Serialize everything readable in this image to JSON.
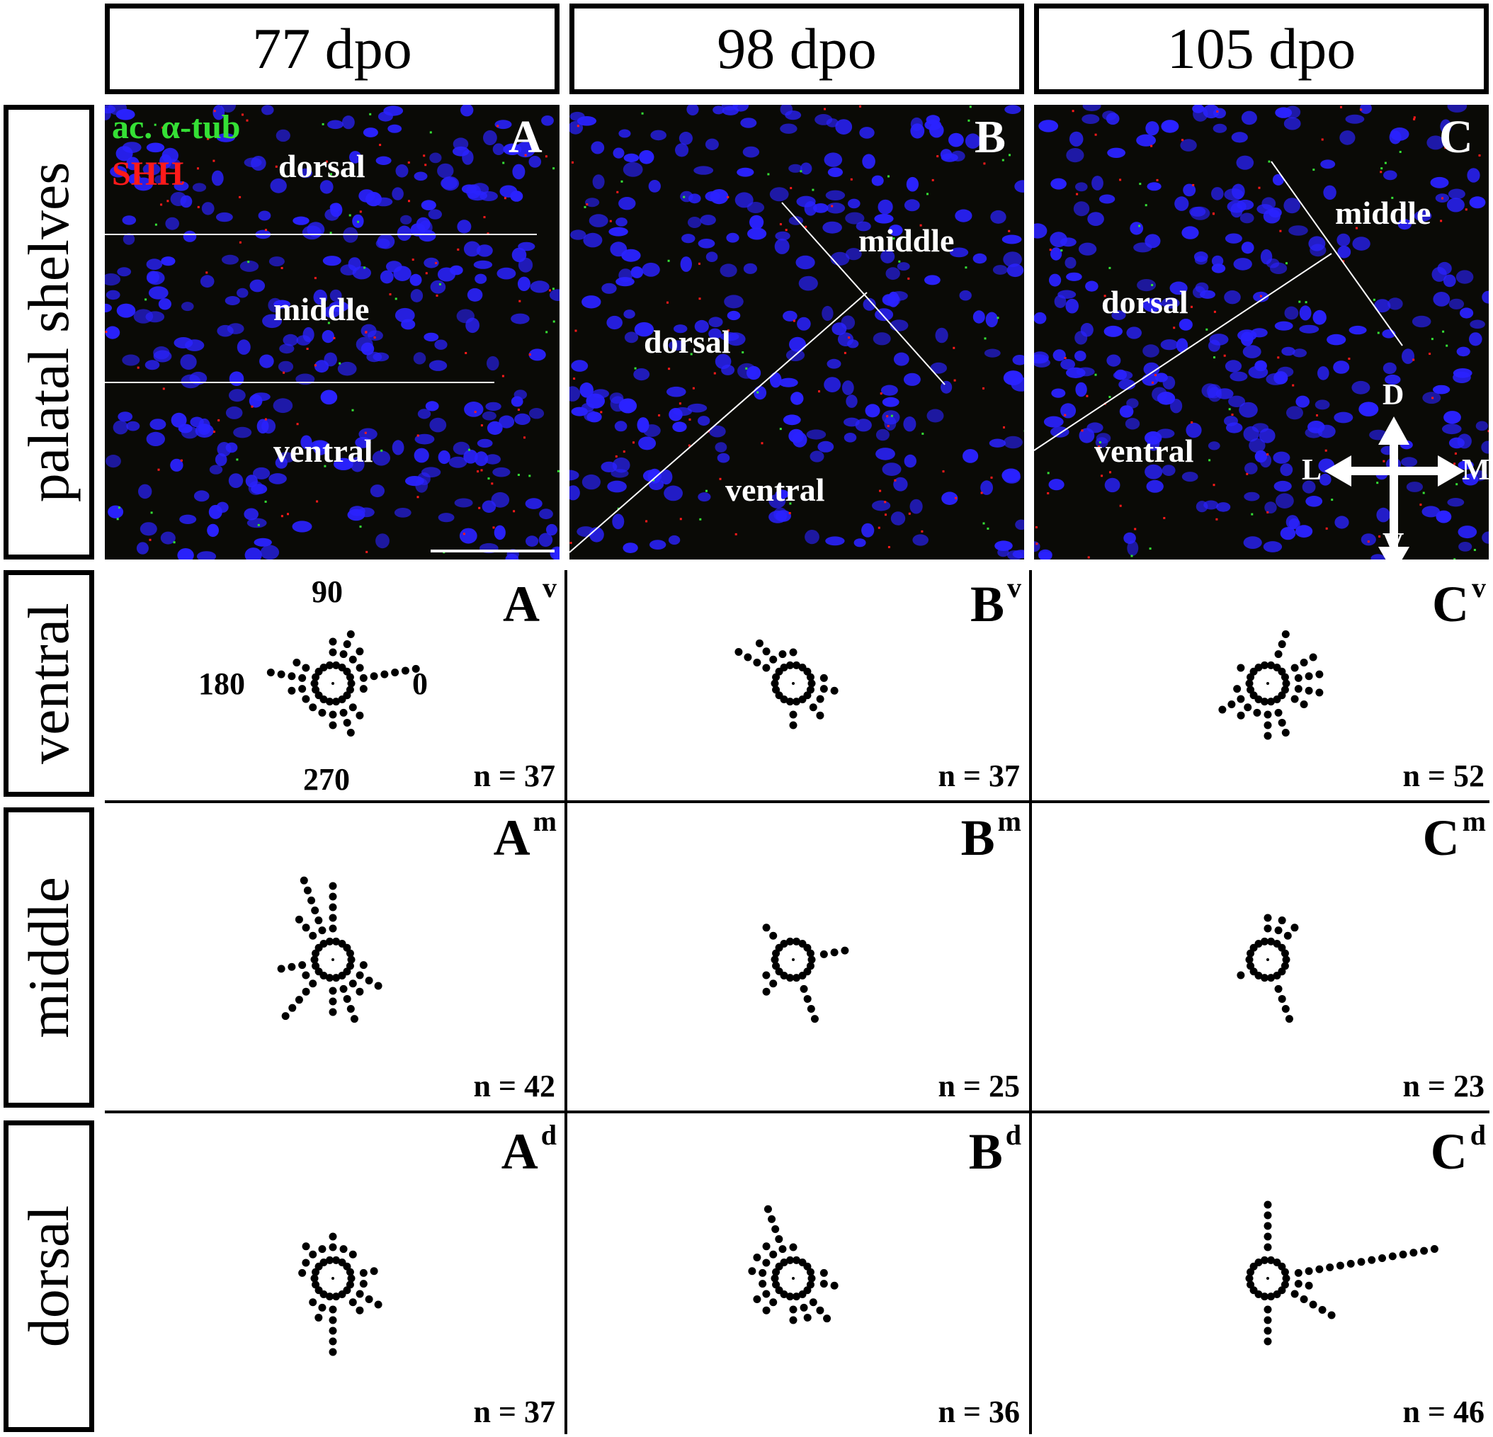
{
  "columns": [
    "77 dpo",
    "98 dpo",
    "105 dpo"
  ],
  "rows": [
    "palatal shelves",
    "ventral",
    "middle",
    "dorsal"
  ],
  "stain_labels": {
    "tubulin": "ac. α-tub",
    "shh": "SHH"
  },
  "colors": {
    "tubulin": "#35e035",
    "shh": "#ff1a1a",
    "nuclei": "#2a22ff",
    "background": "#0a0a06"
  },
  "micrographs": [
    {
      "label": "A",
      "regions": [
        "dorsal",
        "middle",
        "ventral"
      ]
    },
    {
      "label": "B",
      "regions": [
        "middle",
        "dorsal",
        "ventral"
      ]
    },
    {
      "label": "C",
      "regions": [
        "middle",
        "dorsal",
        "ventral"
      ]
    }
  ],
  "axis_letters": {
    "D": "D",
    "V": "V",
    "L": "L",
    "M": "M"
  },
  "angle_labels": {
    "a90": "90",
    "a180": "180",
    "a0": "0",
    "a270": "270"
  },
  "rose_panels": [
    [
      {
        "letter": "A",
        "sup": "v",
        "n": "n = 37"
      },
      {
        "letter": "B",
        "sup": "v",
        "n": "n = 37"
      },
      {
        "letter": "C",
        "sup": "v",
        "n": "n = 52"
      }
    ],
    [
      {
        "letter": "A",
        "sup": "m",
        "n": "n = 42"
      },
      {
        "letter": "B",
        "sup": "m",
        "n": "n = 25"
      },
      {
        "letter": "C",
        "sup": "m",
        "n": "n = 23"
      }
    ],
    [
      {
        "letter": "A",
        "sup": "d",
        "n": "n = 37"
      },
      {
        "letter": "B",
        "sup": "d",
        "n": "n = 36"
      },
      {
        "letter": "C",
        "sup": "d",
        "n": "n = 46"
      }
    ]
  ],
  "rose_counts": [
    [
      [
        6,
        1,
        2,
        3,
        2,
        0,
        0,
        2,
        4,
        2,
        1,
        1,
        1,
        2,
        3,
        2,
        0,
        1
      ],
      [
        1,
        0,
        0,
        0,
        1,
        1,
        3,
        4,
        0,
        0,
        0,
        0,
        0,
        2,
        0,
        2,
        1,
        2
      ],
      [
        3,
        3,
        0,
        3,
        0,
        0,
        0,
        1,
        0,
        1,
        3,
        2,
        1,
        3,
        3,
        0,
        2,
        3
      ]
    ],
    [
      [
        0,
        0,
        0,
        0,
        5,
        6,
        3,
        0,
        0,
        3,
        1,
        5,
        0,
        3,
        4,
        2,
        3,
        1
      ],
      [
        3,
        0,
        0,
        0,
        0,
        0,
        2,
        0,
        0,
        0,
        1,
        2,
        0,
        0,
        4,
        0,
        0,
        0
      ],
      [
        0,
        0,
        2,
        2,
        2,
        0,
        0,
        0,
        0,
        0,
        1,
        0,
        0,
        0,
        4,
        0,
        0,
        0
      ]
    ],
    [
      [
        2,
        0,
        1,
        1,
        2,
        1,
        2,
        1,
        1,
        0,
        0,
        1,
        2,
        5,
        0,
        2,
        3,
        1
      ],
      [
        1,
        0,
        0,
        0,
        1,
        5,
        2,
        2,
        2,
        1,
        2,
        2,
        0,
        2,
        2,
        3,
        0,
        2
      ],
      [
        14,
        0,
        0,
        0,
        5,
        0,
        0,
        0,
        0,
        0,
        0,
        0,
        0,
        4,
        0,
        0,
        5,
        2
      ]
    ]
  ]
}
